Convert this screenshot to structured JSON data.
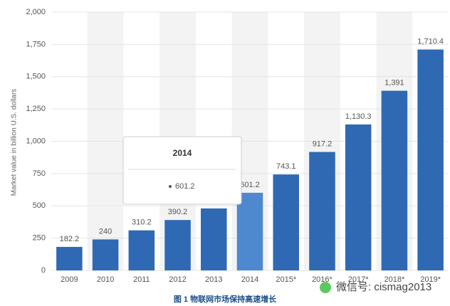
{
  "chart_data": {
    "type": "bar",
    "y_label": "Market value in billion U.S. dollars",
    "categories": [
      "2009",
      "2010",
      "2011",
      "2012",
      "2013",
      "2014",
      "2015*",
      "2016*",
      "2017*",
      "2018*",
      "2019*"
    ],
    "values": [
      182.2,
      240,
      310.2,
      390.2,
      480,
      601.2,
      743.1,
      917.2,
      1130.3,
      1391,
      1710.4
    ],
    "value_labels": [
      "182.2",
      "240",
      "310.2",
      "390.2",
      null,
      "601.2",
      "743.1",
      "917.2",
      "1,130.3",
      "1,391",
      "1,710.4"
    ],
    "color": "#2f69b3",
    "highlight_color": "#4e88cf",
    "ylim": [
      0,
      2000
    ],
    "yticks": [
      0,
      250,
      500,
      750,
      {
        "value": 1000,
        "label": "1,000"
      },
      {
        "value": 1250,
        "label": "1,250"
      },
      {
        "value": 1500,
        "label": "1,500"
      },
      {
        "value": 1750,
        "label": "1,750"
      },
      {
        "value": 2000,
        "label": "2,000"
      }
    ],
    "grid": true,
    "stripes": true,
    "tooltip": {
      "title": "2014",
      "value": 601.2
    }
  },
  "caption": "图 1 物联网市场保持高速增长",
  "watermark": "微信号: cismag2013"
}
